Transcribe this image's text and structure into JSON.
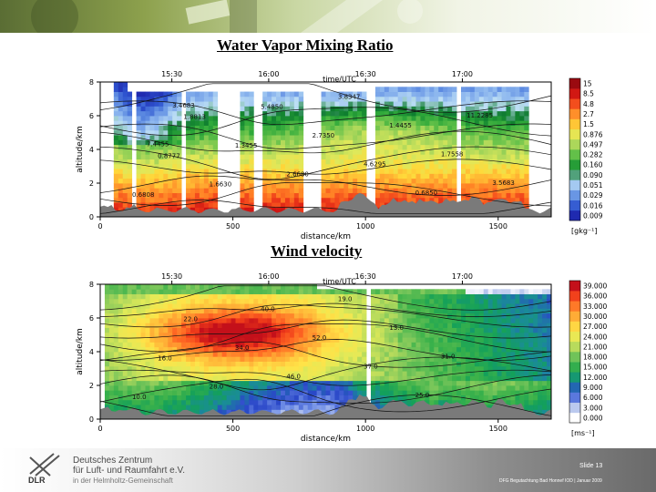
{
  "slide": {
    "title_top": "Water Vapor Mixing Ratio",
    "title_bottom": "Wind velocity",
    "org_line1": "Deutsches Zentrum",
    "org_line2": "für Luft- und Raumfahrt e.V.",
    "org_line3": "in der Helmholtz-Gemeinschaft",
    "logo_text": "DLR",
    "slide_number": "Slide 13",
    "footer_info": "DFG Begutachtung Bad Honnef IOD | Januar 2009"
  },
  "colors": {
    "wv_scale": [
      "#1f2ab0",
      "#2f55d0",
      "#5a88e0",
      "#8cb6ee",
      "#bfe0f5",
      "#0c7a2e",
      "#2ea83a",
      "#67c24a",
      "#a8d65a",
      "#dfe85a",
      "#ffd93a",
      "#ffa830",
      "#ff7a24",
      "#ee3a1a",
      "#cc1212",
      "#9a0a10"
    ],
    "ws_scale": [
      "#ffffff",
      "#c9d4f0",
      "#6f8ee6",
      "#2a47c8",
      "#1a8c98",
      "#13a05a",
      "#3cb24a",
      "#74c45a",
      "#b5da5c",
      "#e2ea58",
      "#ffe348",
      "#ffc23c",
      "#ff9a30",
      "#ff6a24",
      "#ee3a1a",
      "#c4101a"
    ]
  },
  "chart_data": [
    {
      "type": "heatmap",
      "title": "Water Vapor Mixing Ratio",
      "xlabel": "distance/km",
      "ylabel": "altitude/km",
      "top_axis_label": "time/UTC",
      "x_ticks": [
        "0",
        "500",
        "1000",
        "1500"
      ],
      "time_ticks": [
        "15:30",
        "16:00",
        "16:30",
        "17:00"
      ],
      "y_ticks": [
        "0",
        "2",
        "4",
        "6",
        "8"
      ],
      "xlim": [
        0,
        1700
      ],
      "ylim": [
        0,
        8
      ],
      "colorbar_unit": "[gkg⁻¹]",
      "colorbar_levels": [
        "0.009",
        "0.016",
        "0.029",
        "0.051",
        "0.090",
        "0.160",
        "0.282",
        "0.497",
        "0.876",
        "1.5",
        "2.7",
        "4.8",
        "8.5",
        "15"
      ],
      "contour_labels": [
        "0.6808",
        "0.8777",
        "1.8813",
        "1.6630",
        "1.3455",
        "5.4850",
        "2.6680",
        "2.7350",
        "3.8347",
        "4.6295",
        "1.4455",
        "0.6850",
        "1.7558",
        "11.2285",
        "3.5683",
        "7.4455",
        "3.4683"
      ]
    },
    {
      "type": "heatmap",
      "title": "Wind velocity",
      "xlabel": "distance/km",
      "ylabel": "altitude/km",
      "top_axis_label": "time/UTC",
      "x_ticks": [
        "0",
        "500",
        "1000",
        "1500"
      ],
      "time_ticks": [
        "15:30",
        "16:00",
        "16:30",
        "17:00"
      ],
      "y_ticks": [
        "0",
        "2",
        "4",
        "6",
        "8"
      ],
      "xlim": [
        0,
        1700
      ],
      "ylim": [
        0,
        8
      ],
      "colorbar_unit": "[ms⁻¹]",
      "colorbar_levels": [
        "0.000",
        "3.000",
        "6.000",
        "9.000",
        "12.000",
        "15.000",
        "18.000",
        "21.000",
        "24.000",
        "27.000",
        "30.000",
        "33.000",
        "36.000",
        "39.000"
      ],
      "contour_labels": [
        "10.0",
        "16.0",
        "22.0",
        "28.0",
        "34.0",
        "40.0",
        "46.0",
        "52.0",
        "19.0",
        "37.0",
        "13.0",
        "25.0",
        "31.0"
      ]
    }
  ]
}
